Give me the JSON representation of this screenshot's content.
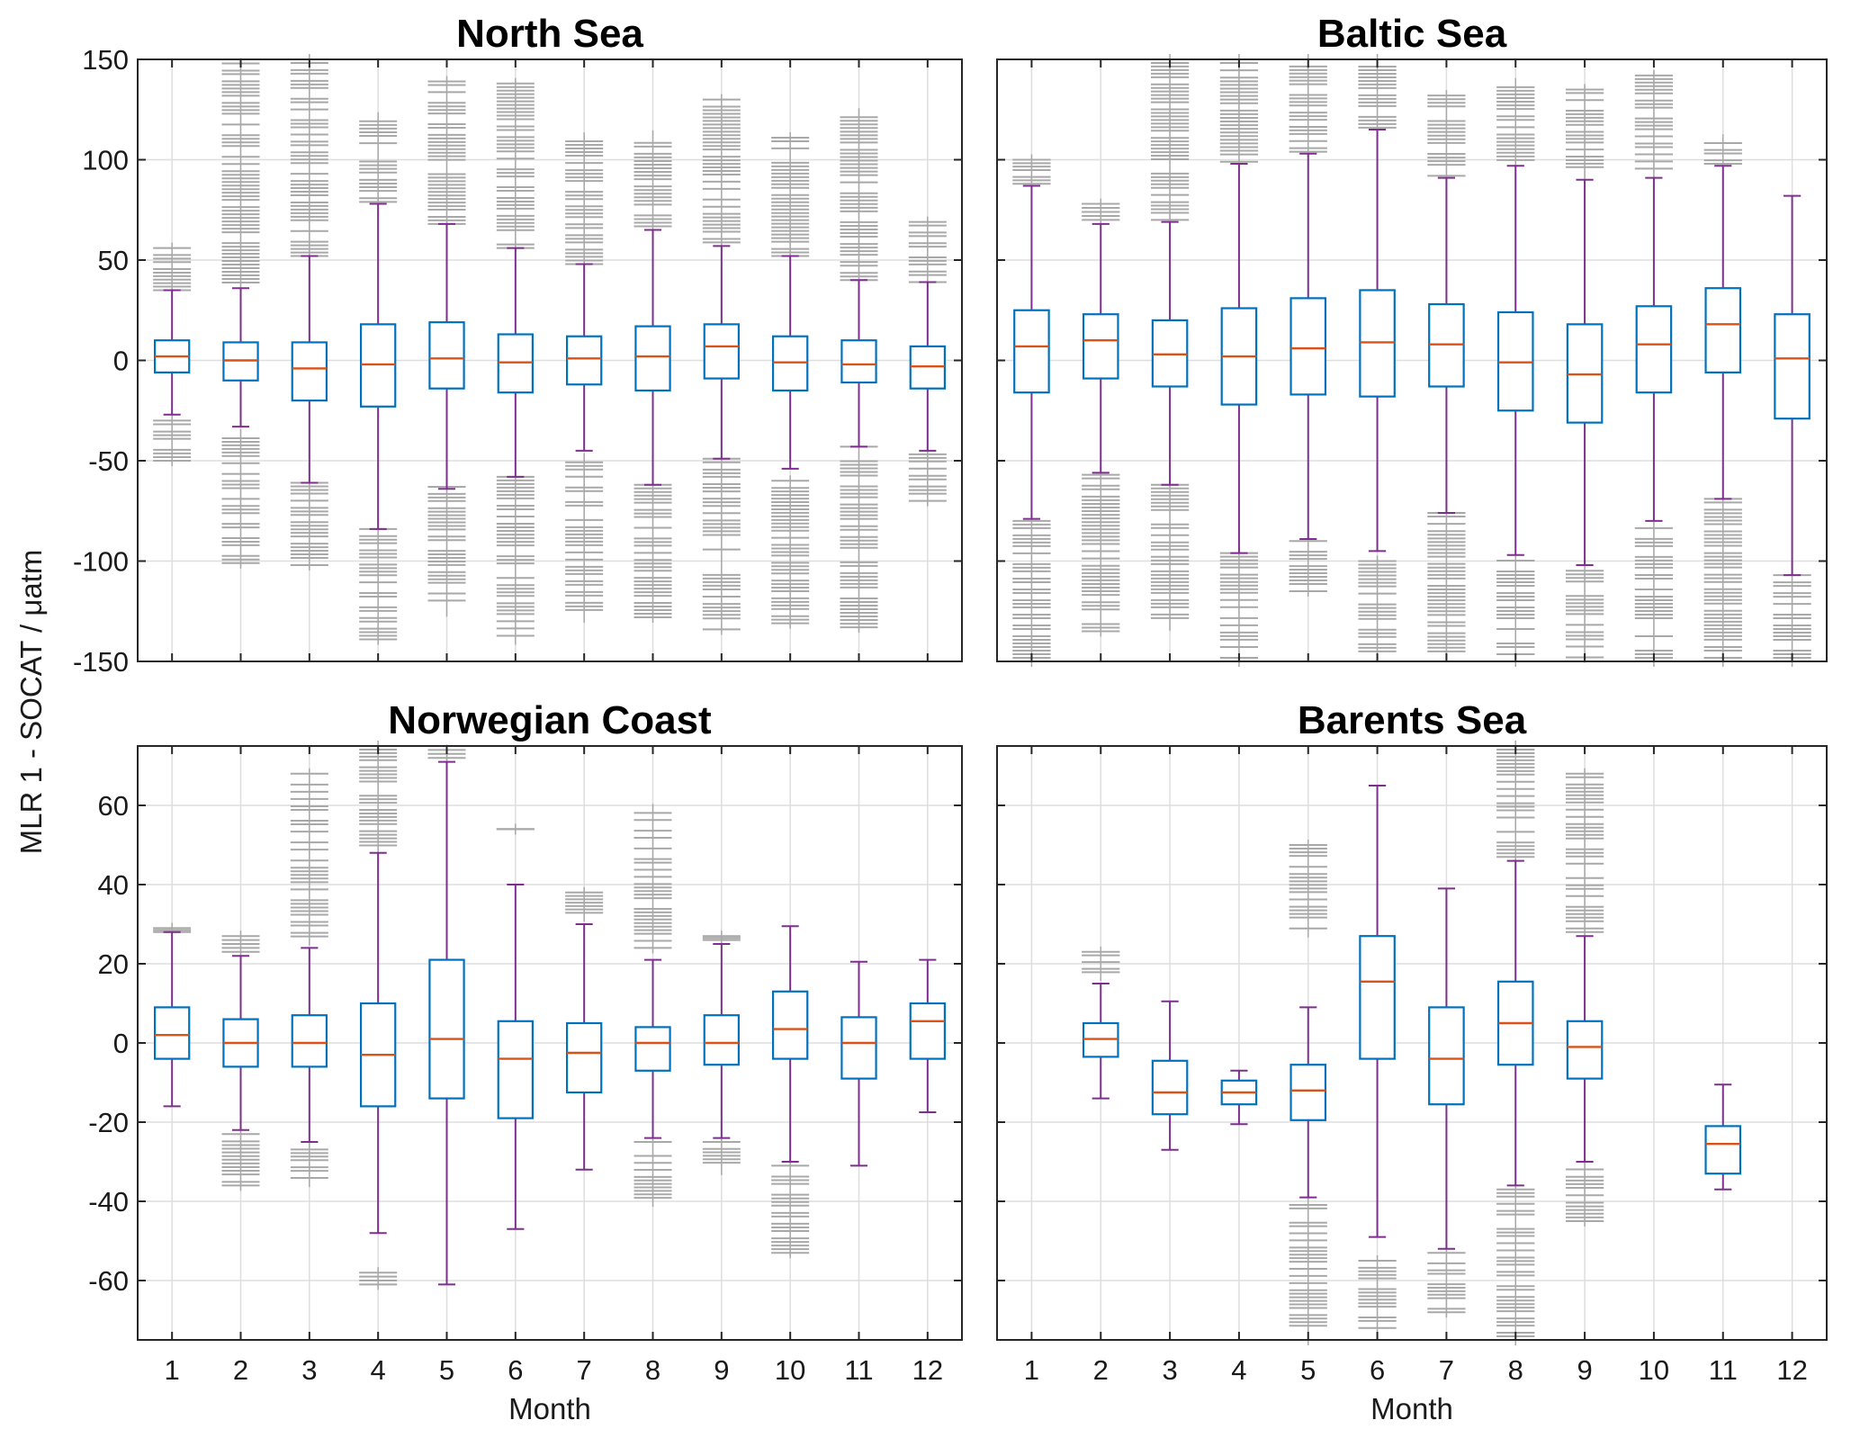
{
  "chart_data": {
    "type": "boxplot",
    "ylabel": "MLR 1 - SOCAT / μatm",
    "xlabel": "Month",
    "colors": {
      "box": "#0072BD",
      "median": "#D95319",
      "whisker": "#7E2F8E",
      "outlier": "#A8A8A8",
      "grid": "#DEDEDE"
    },
    "categories": [
      "1",
      "2",
      "3",
      "4",
      "5",
      "6",
      "7",
      "8",
      "9",
      "10",
      "11",
      "12"
    ],
    "panels": [
      {
        "title": "North Sea",
        "ylim": [
          -150,
          150
        ],
        "yticks": [
          "150",
          "100",
          "50",
          "0",
          "-50",
          "-100",
          "-150"
        ],
        "ytick_values": [
          150,
          100,
          50,
          0,
          -50,
          -100,
          -150
        ],
        "show_yticks": true,
        "show_xticks": false,
        "boxes": [
          {
            "lw": -27,
            "q1": -6,
            "med": 2,
            "q3": 10,
            "uw": 35,
            "out_high": [
              35,
              56
            ],
            "out_low": [
              -50,
              -30
            ]
          },
          {
            "lw": -33,
            "q1": -10,
            "med": 0,
            "q3": 9,
            "uw": 36,
            "out_high": [
              37,
              148
            ],
            "out_low": [
              -101,
              -37
            ]
          },
          {
            "lw": -61,
            "q1": -20,
            "med": -4,
            "q3": 9,
            "uw": 52,
            "out_high": [
              52,
              150
            ],
            "out_low": [
              -102,
              -61
            ]
          },
          {
            "lw": -84,
            "q1": -23,
            "med": -2,
            "q3": 18,
            "uw": 78,
            "out_high": [
              79,
              121
            ],
            "out_low": [
              -139,
              -84
            ]
          },
          {
            "lw": -64,
            "q1": -14,
            "med": 1,
            "q3": 19,
            "uw": 68,
            "out_high": [
              68,
              139
            ],
            "out_low": [
              -125,
              -63
            ]
          },
          {
            "lw": -58,
            "q1": -16,
            "med": -1,
            "q3": 13,
            "uw": 56,
            "out_high": [
              56,
              138
            ],
            "out_low": [
              -139,
              -58
            ]
          },
          {
            "lw": -45,
            "q1": -12,
            "med": 1,
            "q3": 12,
            "uw": 48,
            "out_high": [
              48,
              111
            ],
            "out_low": [
              -128,
              -49
            ]
          },
          {
            "lw": -62,
            "q1": -15,
            "med": 2,
            "q3": 17,
            "uw": 65,
            "out_high": [
              65,
              112
            ],
            "out_low": [
              -128,
              -62
            ]
          },
          {
            "lw": -49,
            "q1": -9,
            "med": 7,
            "q3": 18,
            "uw": 57,
            "out_high": [
              57,
              130
            ],
            "out_low": [
              -134,
              -49
            ]
          },
          {
            "lw": -54,
            "q1": -15,
            "med": -1,
            "q3": 12,
            "uw": 52,
            "out_high": [
              52,
              111
            ],
            "out_low": [
              -131,
              -60
            ]
          },
          {
            "lw": -43,
            "q1": -11,
            "med": -2,
            "q3": 10,
            "uw": 40,
            "out_high": [
              40,
              123
            ],
            "out_low": [
              -133,
              -43
            ]
          },
          {
            "lw": -45,
            "q1": -14,
            "med": -3,
            "q3": 7,
            "uw": 39,
            "out_high": [
              39,
              69
            ],
            "out_low": [
              -70,
              -45
            ]
          }
        ]
      },
      {
        "title": "Baltic Sea",
        "ylim": [
          -150,
          150
        ],
        "ytick_values": [
          150,
          100,
          50,
          0,
          -50,
          -100,
          -150
        ],
        "show_yticks": false,
        "show_xticks": false,
        "boxes": [
          {
            "lw": -79,
            "q1": -16,
            "med": 7,
            "q3": 25,
            "uw": 87,
            "out_high": [
              88,
              100
            ],
            "out_low": [
              -150,
              -80
            ]
          },
          {
            "lw": -56,
            "q1": -9,
            "med": 10,
            "q3": 23,
            "uw": 68,
            "out_high": [
              70,
              78
            ],
            "out_low": [
              -135,
              -57
            ]
          },
          {
            "lw": -62,
            "q1": -13,
            "med": 3,
            "q3": 20,
            "uw": 69,
            "out_high": [
              70,
              150
            ],
            "out_low": [
              -132,
              -62
            ]
          },
          {
            "lw": -96,
            "q1": -22,
            "med": 2,
            "q3": 26,
            "uw": 98,
            "out_high": [
              99,
              150
            ],
            "out_low": [
              -150,
              -96
            ]
          },
          {
            "lw": -89,
            "q1": -17,
            "med": 6,
            "q3": 31,
            "uw": 103,
            "out_high": [
              104,
              150
            ],
            "out_low": [
              -115,
              -90
            ]
          },
          {
            "lw": -95,
            "q1": -18,
            "med": 9,
            "q3": 35,
            "uw": 115,
            "out_high": [
              116,
              150
            ],
            "out_low": [
              -145,
              -100
            ]
          },
          {
            "lw": -76,
            "q1": -13,
            "med": 8,
            "q3": 28,
            "uw": 91,
            "out_high": [
              92,
              132
            ],
            "out_low": [
              -145,
              -76
            ]
          },
          {
            "lw": -97,
            "q1": -25,
            "med": -1,
            "q3": 24,
            "uw": 97,
            "out_high": [
              98,
              138
            ],
            "out_low": [
              -150,
              -98
            ]
          },
          {
            "lw": -102,
            "q1": -31,
            "med": -7,
            "q3": 18,
            "uw": 90,
            "out_high": [
              91,
              135
            ],
            "out_low": [
              -148,
              -103
            ]
          },
          {
            "lw": -80,
            "q1": -16,
            "med": 8,
            "q3": 27,
            "uw": 91,
            "out_high": [
              92,
              142
            ],
            "out_low": [
              -150,
              -80
            ]
          },
          {
            "lw": -69,
            "q1": -6,
            "med": 18,
            "q3": 36,
            "uw": 97,
            "out_high": [
              98,
              110
            ],
            "out_low": [
              -150,
              -69
            ]
          },
          {
            "lw": -107,
            "q1": -29,
            "med": 1,
            "q3": 23,
            "uw": 82,
            "out_high": null,
            "out_low": [
              -150,
              -107
            ]
          }
        ]
      },
      {
        "title": "Norwegian Coast",
        "ylim": [
          -75,
          75
        ],
        "yticks": [
          "60",
          "40",
          "20",
          "0",
          "-20",
          "-40",
          "-60"
        ],
        "ytick_values": [
          60,
          40,
          20,
          0,
          -20,
          -40,
          -60
        ],
        "show_yticks": true,
        "show_xticks": true,
        "boxes": [
          {
            "lw": -16,
            "q1": -4,
            "med": 2,
            "q3": 9,
            "uw": 28,
            "out_high": [
              28,
              29
            ],
            "out_low": null
          },
          {
            "lw": -22,
            "q1": -6,
            "med": 0,
            "q3": 6,
            "uw": 22,
            "out_high": [
              23,
              27
            ],
            "out_low": [
              -36,
              -23
            ]
          },
          {
            "lw": -25,
            "q1": -6,
            "med": 0,
            "q3": 7,
            "uw": 24,
            "out_high": [
              26,
              68
            ],
            "out_low": [
              -35,
              -26
            ]
          },
          {
            "lw": -48,
            "q1": -16,
            "med": -3,
            "q3": 10,
            "uw": 48,
            "out_high": [
              49,
              75
            ],
            "out_low": [
              -61,
              -58
            ]
          },
          {
            "lw": -61,
            "q1": -14,
            "med": 1,
            "q3": 21,
            "uw": 71,
            "out_high": [
              72,
              74
            ],
            "out_low": null
          },
          {
            "lw": -47,
            "q1": -19,
            "med": -4,
            "q3": 5.5,
            "uw": 40,
            "out_high": [
              54,
              54
            ],
            "out_low": null
          },
          {
            "lw": -32,
            "q1": -12.5,
            "med": -2.5,
            "q3": 5,
            "uw": 30,
            "out_high": [
              32,
              38
            ],
            "out_low": null
          },
          {
            "lw": -24,
            "q1": -7,
            "med": 0,
            "q3": 4,
            "uw": 21,
            "out_high": [
              24,
              59
            ],
            "out_low": [
              -40,
              -25
            ]
          },
          {
            "lw": -24,
            "q1": -5.5,
            "med": 0,
            "q3": 7,
            "uw": 25,
            "out_high": [
              26,
              27
            ],
            "out_low": [
              -32,
              -25
            ]
          },
          {
            "lw": -30,
            "q1": -4,
            "med": 3.5,
            "q3": 13,
            "uw": 29.5,
            "out_high": null,
            "out_low": [
              -53,
              -31
            ]
          },
          {
            "lw": -31,
            "q1": -9,
            "med": 0,
            "q3": 6.5,
            "uw": 20.5,
            "out_high": null,
            "out_low": null
          },
          {
            "lw": -17.5,
            "q1": -4,
            "med": 5.5,
            "q3": 10,
            "uw": 21,
            "out_high": null,
            "out_low": null
          }
        ]
      },
      {
        "title": "Barents Sea",
        "ylim": [
          -75,
          75
        ],
        "ytick_values": [
          60,
          40,
          20,
          0,
          -20,
          -40,
          -60
        ],
        "show_yticks": false,
        "show_xticks": true,
        "boxes": [
          null,
          {
            "lw": -14,
            "q1": -3.5,
            "med": 1,
            "q3": 5,
            "uw": 15,
            "out_high": [
              17,
              23
            ],
            "out_low": null
          },
          {
            "lw": -27,
            "q1": -18,
            "med": -12.5,
            "q3": -4.5,
            "uw": 10.5,
            "out_high": null,
            "out_low": null
          },
          {
            "lw": -20.5,
            "q1": -15.5,
            "med": -12.5,
            "q3": -9.5,
            "uw": -7,
            "out_high": null,
            "out_low": null
          },
          {
            "lw": -39,
            "q1": -19.5,
            "med": -12,
            "q3": -5.5,
            "uw": 9,
            "out_high": [
              28,
              50
            ],
            "out_low": [
              -75,
              -40
            ]
          },
          {
            "lw": -49,
            "q1": -4,
            "med": 15.5,
            "q3": 27,
            "uw": 65,
            "out_high": null,
            "out_low": [
              -72,
              -55
            ]
          },
          {
            "lw": -52,
            "q1": -15.5,
            "med": -4,
            "q3": 9,
            "uw": 39,
            "out_high": null,
            "out_low": [
              -68,
              -53
            ]
          },
          {
            "lw": -36,
            "q1": -5.5,
            "med": 5,
            "q3": 15.5,
            "uw": 46,
            "out_high": [
              47,
              75
            ],
            "out_low": [
              -75,
              -37
            ]
          },
          {
            "lw": -30,
            "q1": -9,
            "med": -1,
            "q3": 5.5,
            "uw": 27,
            "out_high": [
              28,
              68
            ],
            "out_low": [
              -45,
              -31
            ]
          },
          null,
          {
            "lw": -37,
            "q1": -33,
            "med": -25.5,
            "q3": -21,
            "uw": -10.5,
            "out_high": null,
            "out_low": null
          },
          null
        ]
      }
    ]
  }
}
